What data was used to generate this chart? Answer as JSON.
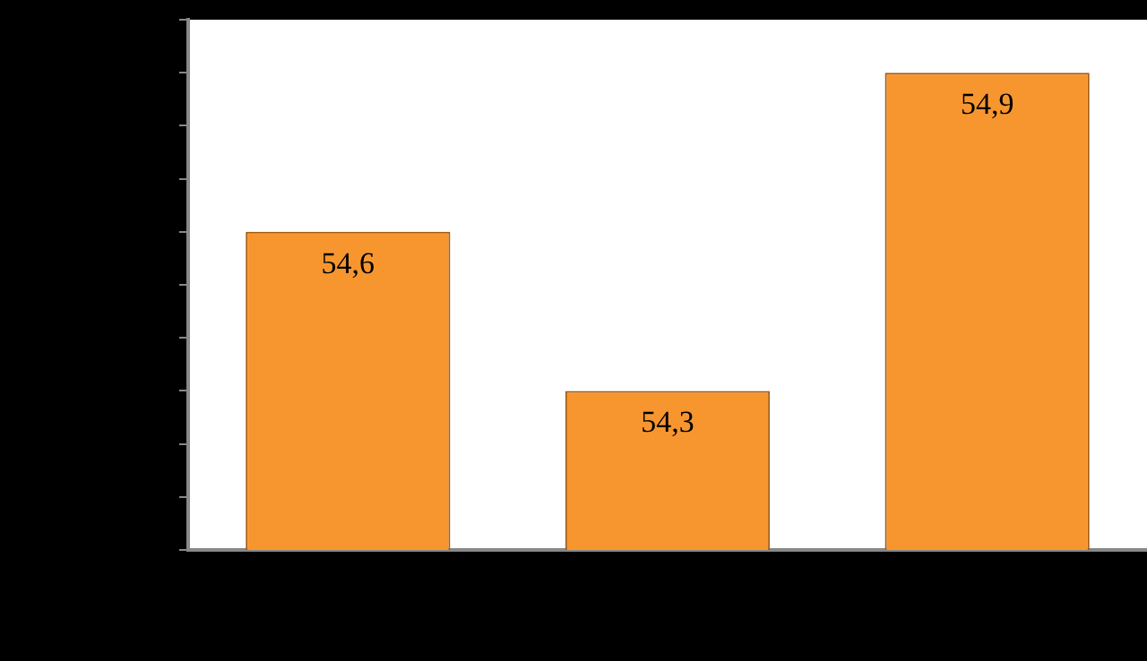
{
  "chart_data": {
    "type": "bar",
    "categories": [
      null,
      null,
      null
    ],
    "values": [
      54.6,
      54.3,
      54.9
    ],
    "value_labels": [
      "54,6",
      "54,3",
      "54,9"
    ],
    "color": "#f7962f",
    "ylim": [
      54,
      55
    ],
    "yticks": [
      {
        "value": 54,
        "label": null
      },
      {
        "value": 54.1,
        "label": null
      },
      {
        "value": 54.2,
        "label": null
      },
      {
        "value": 54.3,
        "label": null
      },
      {
        "value": 54.4,
        "label": null
      },
      {
        "value": 54.5,
        "label": null
      },
      {
        "value": 54.6,
        "label": null
      },
      {
        "value": 54.7,
        "label": null
      },
      {
        "value": 54.8,
        "label": null
      },
      {
        "value": 54.9,
        "label": null
      },
      {
        "value": 55,
        "label": null
      }
    ],
    "grid": false,
    "legend": false
  }
}
